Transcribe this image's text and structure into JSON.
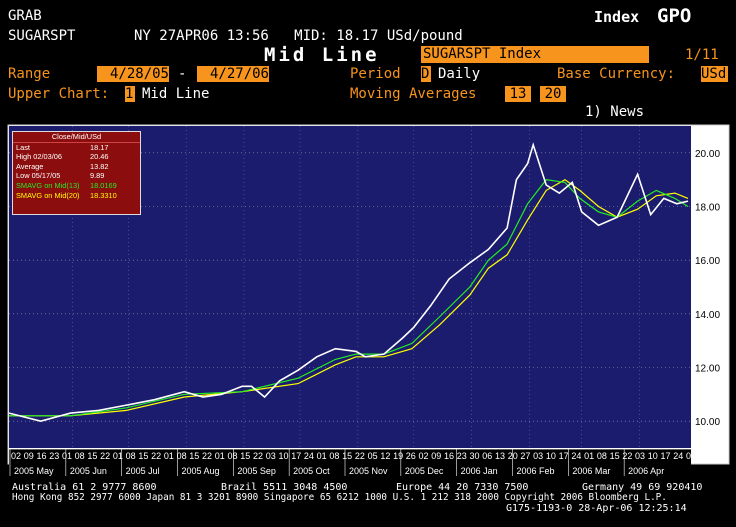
{
  "header": {
    "grab": "GRAB",
    "ticker": "SUGARSPT",
    "quote": "NY 27APR06 13:56   MID: 18.17 USd/pound",
    "index_label": "Index",
    "gpo": "GPO",
    "function_title": "Mid Line",
    "security_name": "SUGARSPT Index",
    "page": "1/11"
  },
  "controls": {
    "range_label": "Range",
    "range_start": "4/28/05",
    "range_dash": "-",
    "range_end": "4/27/06",
    "period_label": "Period",
    "period_code": "D",
    "period_value": "Daily",
    "base_currency_label": "Base Currency:",
    "base_currency_value": "USd",
    "upper_chart_label": "Upper Chart:",
    "upper_chart_code": "1",
    "upper_chart_value": "Mid Line",
    "moving_averages_label": "Moving Averages",
    "ma1": "13",
    "ma2": "20",
    "news": "1) News"
  },
  "legend": {
    "title": "Close/Mid/USd",
    "rows": [
      {
        "label": "Last",
        "value": "18.17",
        "color": "#ffffff"
      },
      {
        "label": "High  02/03/06",
        "value": "20.46",
        "color": "#ffffff"
      },
      {
        "label": "Average",
        "value": "13.82",
        "color": "#ffffff"
      },
      {
        "label": "Low  05/17/05",
        "value": "9.89",
        "color": "#ffffff"
      },
      {
        "label": "SMAVG on Mid(13)",
        "value": "18.0169",
        "color": "#22ee22"
      },
      {
        "label": "SMAVG on Mid(20)",
        "value": "18.3310",
        "color": "#ffff00"
      }
    ]
  },
  "chart_data": {
    "type": "line",
    "ylim": [
      9.0,
      21.0
    ],
    "y_ticks": [
      "10.00",
      "12.00",
      "14.00",
      "16.00",
      "18.00",
      "20.00"
    ],
    "y_tick_values": [
      10,
      12,
      14,
      16,
      18,
      20
    ],
    "x_day_labels": [
      "02",
      "09",
      "16",
      "23",
      "01",
      "08",
      "15",
      "22",
      "01",
      "08",
      "15",
      "22",
      "01",
      "08",
      "15",
      "22",
      "01",
      "08",
      "15",
      "22",
      "03",
      "10",
      "17",
      "24",
      "01",
      "08",
      "15",
      "22",
      "05",
      "12",
      "19",
      "26",
      "02",
      "09",
      "16",
      "23",
      "30",
      "06",
      "13",
      "20",
      "27",
      "03",
      "10",
      "17",
      "24",
      "01",
      "08",
      "15",
      "22",
      "03",
      "10",
      "17",
      "24",
      "01"
    ],
    "x_month_labels": [
      "2005 May",
      "2005 Jun",
      "2005 Jul",
      "2005 Aug",
      "2005 Sep",
      "2005 Oct",
      "2005 Nov",
      "2005 Dec",
      "2006 Jan",
      "2006 Feb",
      "2006 Mar",
      "2006 Apr"
    ],
    "series": [
      {
        "name": "Mid",
        "color": "#ffffff",
        "x": [
          "2005-04-28",
          "2005-05-15",
          "2005-05-31",
          "2005-06-15",
          "2005-06-30",
          "2005-07-15",
          "2005-07-31",
          "2005-08-10",
          "2005-08-20",
          "2005-08-31",
          "2005-09-05",
          "2005-09-12",
          "2005-09-20",
          "2005-09-30",
          "2005-10-10",
          "2005-10-20",
          "2005-10-31",
          "2005-11-05",
          "2005-11-15",
          "2005-11-25",
          "2005-12-01",
          "2005-12-10",
          "2005-12-20",
          "2005-12-31",
          "2006-01-10",
          "2006-01-20",
          "2006-01-25",
          "2006-01-31",
          "2006-02-03",
          "2006-02-10",
          "2006-02-17",
          "2006-02-24",
          "2006-03-01",
          "2006-03-10",
          "2006-03-20",
          "2006-03-31",
          "2006-04-07",
          "2006-04-14",
          "2006-04-21",
          "2006-04-27"
        ],
        "y": [
          10.3,
          10.0,
          10.3,
          10.4,
          10.6,
          10.8,
          11.1,
          10.9,
          11.0,
          11.3,
          11.3,
          10.9,
          11.5,
          11.9,
          12.4,
          12.7,
          12.6,
          12.4,
          12.5,
          13.1,
          13.5,
          14.3,
          15.3,
          15.9,
          16.4,
          17.2,
          19.0,
          19.6,
          20.3,
          18.8,
          18.5,
          18.9,
          17.8,
          17.3,
          17.6,
          19.2,
          17.7,
          18.3,
          18.1,
          18.2
        ]
      },
      {
        "name": "SMAVG on Mid(13)",
        "color": "#22ee22",
        "x": [
          "2005-04-28",
          "2005-05-31",
          "2005-06-30",
          "2005-07-31",
          "2005-08-31",
          "2005-09-30",
          "2005-10-20",
          "2005-10-31",
          "2005-11-15",
          "2005-11-30",
          "2005-12-15",
          "2005-12-31",
          "2006-01-10",
          "2006-01-20",
          "2006-01-31",
          "2006-02-10",
          "2006-02-20",
          "2006-02-28",
          "2006-03-10",
          "2006-03-20",
          "2006-03-31",
          "2006-04-10",
          "2006-04-20",
          "2006-04-27"
        ],
        "y": [
          10.2,
          10.2,
          10.5,
          11.0,
          11.1,
          11.6,
          12.3,
          12.5,
          12.5,
          12.9,
          13.9,
          15.0,
          16.0,
          16.6,
          18.1,
          19.0,
          18.9,
          18.3,
          17.8,
          17.6,
          18.2,
          18.6,
          18.3,
          18.0
        ]
      },
      {
        "name": "SMAVG on Mid(20)",
        "color": "#ffff00",
        "x": [
          "2005-04-28",
          "2005-05-31",
          "2005-06-30",
          "2005-07-31",
          "2005-08-31",
          "2005-09-30",
          "2005-10-20",
          "2005-10-31",
          "2005-11-15",
          "2005-11-30",
          "2005-12-15",
          "2005-12-31",
          "2006-01-10",
          "2006-01-20",
          "2006-01-31",
          "2006-02-10",
          "2006-02-20",
          "2006-02-28",
          "2006-03-10",
          "2006-03-20",
          "2006-03-31",
          "2006-04-10",
          "2006-04-20",
          "2006-04-27"
        ],
        "y": [
          10.2,
          10.2,
          10.4,
          10.9,
          11.1,
          11.4,
          12.1,
          12.4,
          12.4,
          12.7,
          13.6,
          14.7,
          15.7,
          16.2,
          17.5,
          18.6,
          19.0,
          18.6,
          18.0,
          17.6,
          17.9,
          18.4,
          18.5,
          18.3
        ]
      }
    ]
  },
  "footer": {
    "line1_left": "Australia 61 2 9777 8600",
    "line1_mid1": "Brazil 5511 3048 4500",
    "line1_mid2": "Europe 44 20 7330 7500",
    "line1_right": "Germany 49 69 920410",
    "line2": "Hong Kong 852 2977 6000 Japan 81 3 3201 8900 Singapore 65 6212 1000 U.S. 1 212 318 2000 Copyright 2006 Bloomberg L.P.",
    "line3": "G175-1193-0 28-Apr-06 12:25:14"
  }
}
